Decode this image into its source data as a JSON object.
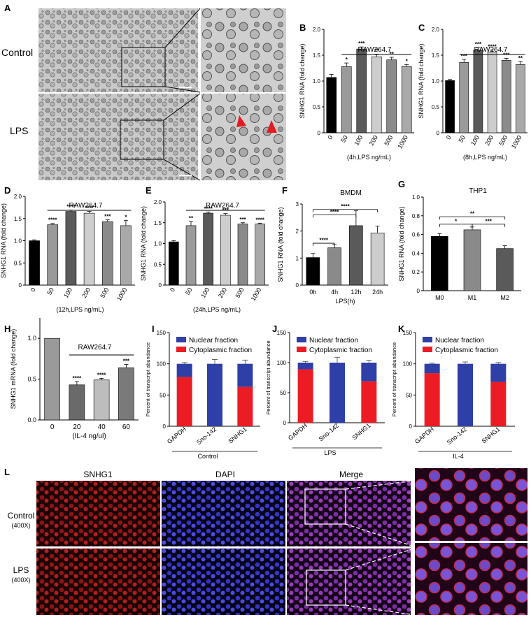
{
  "panel_labels": {
    "A": "A",
    "B": "B",
    "C": "C",
    "D": "D",
    "E": "E",
    "F": "F",
    "G": "G",
    "H": "H",
    "I": "I",
    "J": "J",
    "K": "K",
    "L": "L"
  },
  "micro_a": {
    "row_labels": [
      "Control",
      "LPS"
    ]
  },
  "micro_l": {
    "col_labels": [
      "SNHG1",
      "DAPI",
      "Merge"
    ],
    "rows": [
      {
        "label": "Control",
        "sub": "(400X)"
      },
      {
        "label": "LPS",
        "sub": "(400X)"
      }
    ]
  },
  "chart_data": [
    {
      "id": "B",
      "type": "bar",
      "title": "RAW264.7",
      "ylabel": "SNHG1 RNA (fold change)",
      "xlabel": "(4h,LPS ng/mL)",
      "categories": [
        "0",
        "50",
        "100",
        "200",
        "500",
        "1000"
      ],
      "values": [
        1.07,
        1.28,
        1.62,
        1.47,
        1.41,
        1.28
      ],
      "errors": [
        0.06,
        0.07,
        0.04,
        0.05,
        0.05,
        0.04
      ],
      "sig": [
        "",
        "*",
        "***",
        "**",
        "**",
        "*"
      ],
      "ylim": [
        0,
        2.0
      ],
      "yticks": [
        "0",
        "0.5",
        "1.0",
        "1.5",
        "2.0"
      ],
      "ytick_values": [
        0,
        0.5,
        1.0,
        1.5,
        2.0
      ],
      "colors": [
        "#000000",
        "#9a9a9a",
        "#5a5a5a",
        "#cdcdcd",
        "#8a8a8a",
        "#a9a9a9"
      ]
    },
    {
      "id": "C",
      "type": "bar",
      "title": "RAW264.7",
      "ylabel": "SNHG1 RNA (fold change)",
      "xlabel": "(8h,LPS ng/mL)",
      "categories": [
        "0",
        "50",
        "100",
        "200",
        "500",
        "1000"
      ],
      "values": [
        1.01,
        1.36,
        1.6,
        1.56,
        1.4,
        1.32
      ],
      "errors": [
        0.02,
        0.06,
        0.05,
        0.04,
        0.04,
        0.06
      ],
      "sig": [
        "",
        "***",
        "***",
        "****",
        "***",
        "**"
      ],
      "ylim": [
        0,
        2.0
      ],
      "yticks": [
        "0",
        "0.5",
        "1.0",
        "1.5",
        "2.0"
      ],
      "ytick_values": [
        0,
        0.5,
        1.0,
        1.5,
        2.0
      ],
      "colors": [
        "#000000",
        "#9a9a9a",
        "#5a5a5a",
        "#cdcdcd",
        "#8a8a8a",
        "#a9a9a9"
      ]
    },
    {
      "id": "D",
      "type": "bar",
      "title": "RAW264.7",
      "ylabel": "SNHG1 RNA (fold change)",
      "xlabel": "(12h,LPS ng/mL)",
      "categories": [
        "0",
        "50",
        "100",
        "200",
        "500",
        "1000"
      ],
      "values": [
        1.0,
        1.36,
        1.66,
        1.62,
        1.43,
        1.34
      ],
      "errors": [
        0.02,
        0.03,
        0.03,
        0.04,
        0.04,
        0.12
      ],
      "sig": [
        "",
        "****",
        "****",
        "****",
        "***",
        "*"
      ],
      "ylim": [
        0,
        2.0
      ],
      "yticks": [
        "0",
        "0.5",
        "1.0",
        "1.5",
        "2.0"
      ],
      "ytick_values": [
        0,
        0.5,
        1.0,
        1.5,
        2.0
      ],
      "colors": [
        "#000000",
        "#9a9a9a",
        "#5a5a5a",
        "#cdcdcd",
        "#8a8a8a",
        "#a9a9a9"
      ]
    },
    {
      "id": "E",
      "type": "bar",
      "title": "RAW264.7",
      "ylabel": "SNHG1 RNA (fold change)",
      "xlabel": "(24h,LPS ng/mL)",
      "categories": [
        "0",
        "50",
        "100",
        "200",
        "500",
        "1000"
      ],
      "values": [
        1.04,
        1.43,
        1.73,
        1.68,
        1.47,
        1.47
      ],
      "errors": [
        0.03,
        0.1,
        0.03,
        0.04,
        0.03,
        0.02
      ],
      "sig": [
        "",
        "**",
        "****",
        "***",
        "***",
        "****"
      ],
      "ylim": [
        0,
        2.0
      ],
      "yticks": [
        "0",
        "0.5",
        "1.0",
        "1.5",
        "2.0"
      ],
      "ytick_values": [
        0,
        0.5,
        1.0,
        1.5,
        2.0
      ],
      "colors": [
        "#000000",
        "#9a9a9a",
        "#5a5a5a",
        "#cdcdcd",
        "#8a8a8a",
        "#a9a9a9"
      ]
    },
    {
      "id": "F",
      "type": "bar",
      "title": "BMDM",
      "ylabel": "SNHG1 RNA (fold change)",
      "xlabel": "LPS(h)",
      "categories": [
        "0h",
        "4h",
        "12h",
        "24h"
      ],
      "values": [
        1.02,
        1.38,
        2.2,
        1.93
      ],
      "errors": [
        0.15,
        0.12,
        0.55,
        0.25
      ],
      "sig": [
        "",
        "",
        "",
        ""
      ],
      "ylim": [
        0,
        3
      ],
      "yticks": [
        "0",
        "1",
        "2",
        "3"
      ],
      "ytick_values": [
        0,
        1,
        2,
        3
      ],
      "colors": [
        "#000000",
        "#8a8a8a",
        "#5a5a5a",
        "#cdcdcd"
      ],
      "brackets": [
        {
          "from": 0,
          "to": 1,
          "label": "****"
        },
        {
          "from": 0,
          "to": 2,
          "label": "****"
        },
        {
          "from": 0,
          "to": 3,
          "label": "****"
        }
      ]
    },
    {
      "id": "G",
      "type": "bar",
      "title": "THP1",
      "ylabel": "SNHG1 RNA (fold change)",
      "xlabel": "",
      "categories": [
        "M0",
        "M1",
        "M2"
      ],
      "values": [
        0.58,
        0.65,
        0.45
      ],
      "errors": [
        0.03,
        0.03,
        0.03
      ],
      "sig": [
        "",
        "",
        ""
      ],
      "ylim": [
        0,
        1.0
      ],
      "yticks": [
        "0",
        "0.2",
        "0.4",
        "0.6",
        "0.8",
        "1.0"
      ],
      "ytick_values": [
        0,
        0.2,
        0.4,
        0.6,
        0.8,
        1.0
      ],
      "colors": [
        "#000000",
        "#8a8a8a",
        "#5a5a5a"
      ],
      "brackets": [
        {
          "from": 0,
          "to": 1,
          "label": "*"
        },
        {
          "from": 1,
          "to": 2,
          "label": "***"
        },
        {
          "from": 0,
          "to": 2,
          "label": "**"
        }
      ]
    },
    {
      "id": "H",
      "type": "bar",
      "title": "RAW264.7",
      "ylabel": "SNHG1 mRNA (fold change)",
      "xlabel": "(IL-4 ng/ul)",
      "categories": [
        "0",
        "20",
        "40",
        "60"
      ],
      "values": [
        1.0,
        0.43,
        0.49,
        0.64
      ],
      "errors": [
        0.0,
        0.04,
        0.02,
        0.04
      ],
      "sig": [
        "",
        "****",
        "****",
        "***"
      ],
      "ylim": [
        0,
        1.25
      ],
      "yticks": [
        "0.0",
        "0.5",
        "1.0"
      ],
      "ytick_values": [
        0,
        0.5,
        1.0
      ],
      "colors": [
        "#9a9a9a",
        "#6a6a6a",
        "#bdbdbd",
        "#7a7a7a"
      ]
    },
    {
      "id": "I",
      "type": "bar",
      "stacked": true,
      "ylabel": "Percent of transcript abundance",
      "group_label": "Control",
      "categories": [
        "GAPDH",
        "Sno-142",
        "SNHG1"
      ],
      "series": [
        {
          "name": "Nuclear fraction",
          "color": "#2e3fa8",
          "values": [
            21,
            100,
            37
          ]
        },
        {
          "name": "Cytoplasmic fraction",
          "color": "#ec1c24",
          "values": [
            79,
            0,
            63
          ]
        }
      ],
      "errors": [
        2,
        7,
        6
      ],
      "ylim": [
        0,
        150
      ],
      "yticks": [
        "0",
        "50",
        "100",
        "150"
      ],
      "ytick_values": [
        0,
        50,
        100,
        150
      ]
    },
    {
      "id": "J",
      "type": "bar",
      "stacked": true,
      "ylabel": "Percent of transcript abundance",
      "group_label": "LPS",
      "categories": [
        "GAPDH",
        "Sno-142",
        "SNHG1"
      ],
      "series": [
        {
          "name": "Nuclear fraction",
          "color": "#2e3fa8",
          "values": [
            11,
            100,
            31
          ]
        },
        {
          "name": "Cytoplasmic fraction",
          "color": "#ec1c24",
          "values": [
            89,
            0,
            69
          ]
        }
      ],
      "errors": [
        2,
        9,
        4
      ],
      "ylim": [
        0,
        150
      ],
      "yticks": [
        "0",
        "50",
        "100",
        "150"
      ],
      "ytick_values": [
        0,
        50,
        100,
        150
      ]
    },
    {
      "id": "K",
      "type": "bar",
      "stacked": true,
      "ylabel": "Percent of transcript abundance",
      "group_label": "IL-4",
      "categories": [
        "GAPDH",
        "Sno-142",
        "SNHG1"
      ],
      "series": [
        {
          "name": "Nuclear fraction",
          "color": "#2e3fa8",
          "values": [
            15,
            100,
            29
          ]
        },
        {
          "name": "Cytoplasmic fraction",
          "color": "#ec1c24",
          "values": [
            85,
            0,
            71
          ]
        }
      ],
      "errors": [
        1,
        3,
        2
      ],
      "ylim": [
        0,
        150
      ],
      "yticks": [
        "0",
        "50",
        "100",
        "150"
      ],
      "ytick_values": [
        0,
        50,
        100,
        150
      ]
    }
  ]
}
